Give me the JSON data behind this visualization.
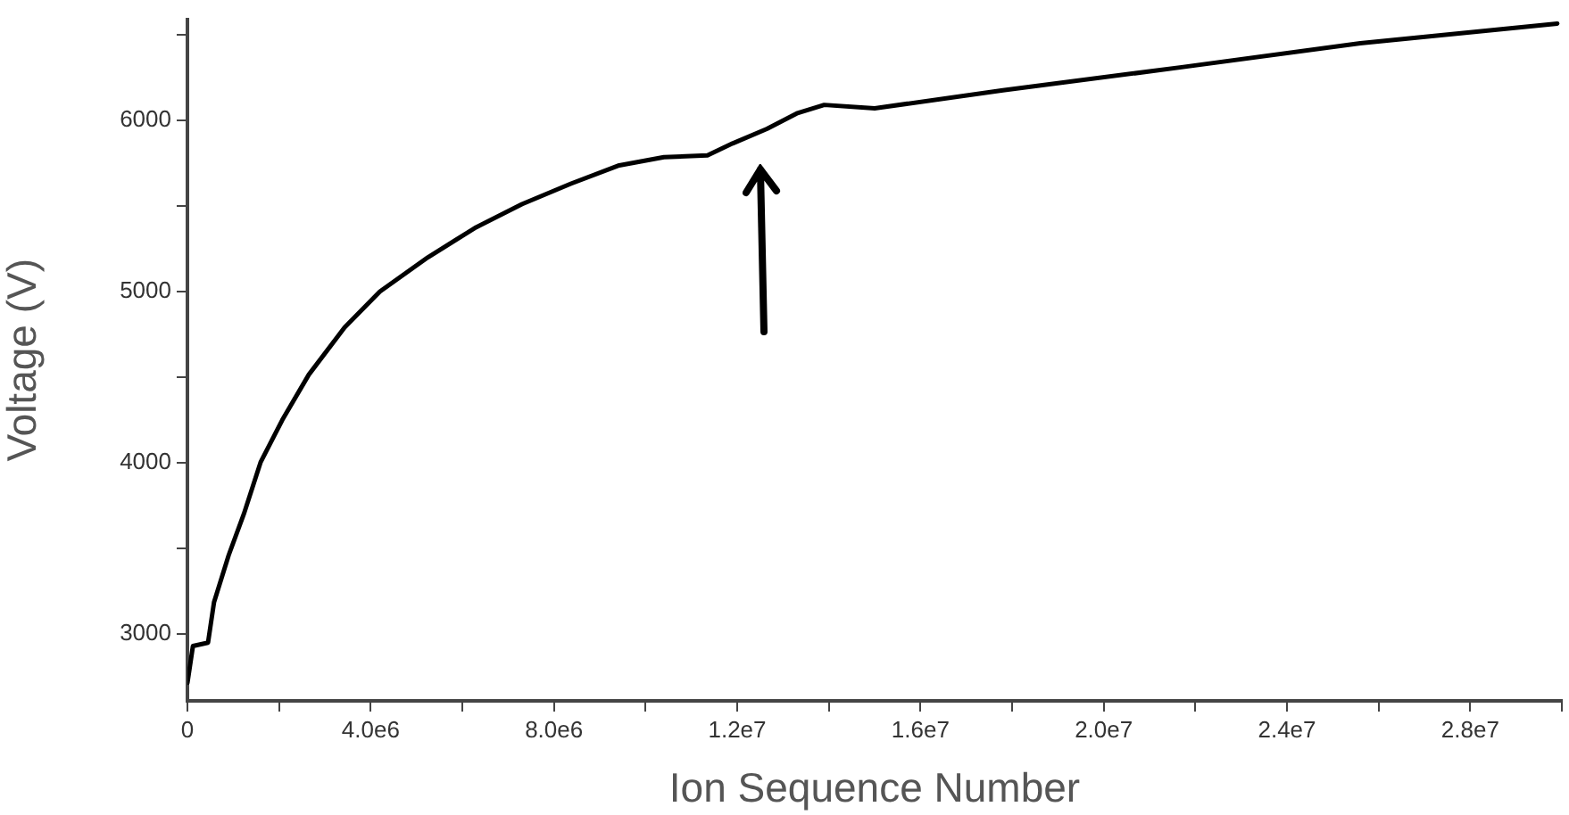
{
  "chart_data": {
    "type": "line",
    "xlabel": "Ion Sequence Number",
    "ylabel": "Voltage (V)",
    "xlim": [
      0,
      30000000
    ],
    "ylim": [
      2610,
      6590
    ],
    "xticks": [
      {
        "value": 0,
        "label": "0"
      },
      {
        "value": 2000000,
        "label": null
      },
      {
        "value": 4000000,
        "label": "4.0e6"
      },
      {
        "value": 6000000,
        "label": null
      },
      {
        "value": 8000000,
        "label": "8.0e6"
      },
      {
        "value": 10000000,
        "label": null
      },
      {
        "value": 12000000,
        "label": "1.2e7"
      },
      {
        "value": 14000000,
        "label": null
      },
      {
        "value": 16000000,
        "label": "1.6e7"
      },
      {
        "value": 18000000,
        "label": null
      },
      {
        "value": 20000000,
        "label": "2.0e7"
      },
      {
        "value": 22000000,
        "label": null
      },
      {
        "value": 24000000,
        "label": "2.4e7"
      },
      {
        "value": 26000000,
        "label": null
      },
      {
        "value": 28000000,
        "label": "2.8e7"
      },
      {
        "value": 30000000,
        "label": null
      }
    ],
    "yticks": [
      3000,
      {
        "value": 3500,
        "label": null
      },
      4000,
      {
        "value": 4500,
        "label": null
      },
      5000,
      {
        "value": 5500,
        "label": null
      },
      6000,
      {
        "value": 6500,
        "label": null
      }
    ],
    "grid": false,
    "legend": false,
    "marker": "none",
    "line_style": "solid",
    "series": [
      {
        "color": "#000000",
        "x": [
          0,
          120000,
          450000,
          580000,
          900000,
          1230000,
          1600000,
          2070000,
          2650000,
          3430000,
          4200000,
          5250000,
          6300000,
          7300000,
          8370000,
          9400000,
          10400000,
          11350000,
          11900000,
          12650000,
          13300000,
          13900000,
          15000000,
          17800000,
          21700000,
          25600000,
          29900000
        ],
        "values": [
          2715,
          2930,
          2950,
          3185,
          3460,
          3700,
          4005,
          4250,
          4515,
          4790,
          5000,
          5200,
          5375,
          5510,
          5630,
          5735,
          5785,
          5795,
          5865,
          5950,
          6040,
          6090,
          6070,
          6175,
          6310,
          6450,
          6565
        ]
      }
    ]
  }
}
